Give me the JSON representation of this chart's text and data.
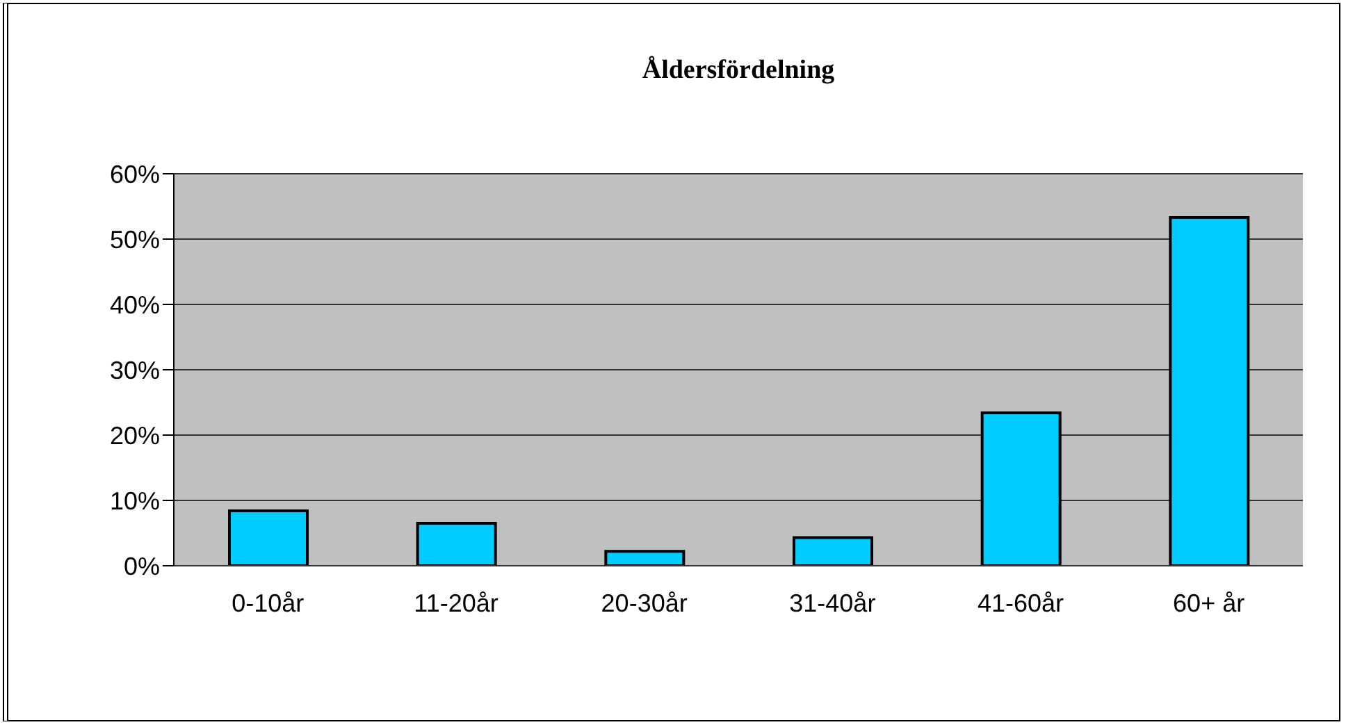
{
  "chart_data": {
    "type": "bar",
    "title": "Åldersfördelning",
    "categories": [
      "0-10år",
      "11-20år",
      "20-30år",
      "31-40år",
      "41-60år",
      "60+ år"
    ],
    "values": [
      8.4,
      6.5,
      2.2,
      4.3,
      23.4,
      53.3
    ],
    "color": "#00ccff",
    "ylim": [
      0,
      60
    ],
    "yticks": [
      {
        "value": 0,
        "label": "0%"
      },
      {
        "value": 10,
        "label": "10%"
      },
      {
        "value": 20,
        "label": "20%"
      },
      {
        "value": 30,
        "label": "30%"
      },
      {
        "value": 40,
        "label": "40%"
      },
      {
        "value": 50,
        "label": "50%"
      },
      {
        "value": 60,
        "label": "60%"
      }
    ],
    "grid": "y",
    "legend": false
  }
}
